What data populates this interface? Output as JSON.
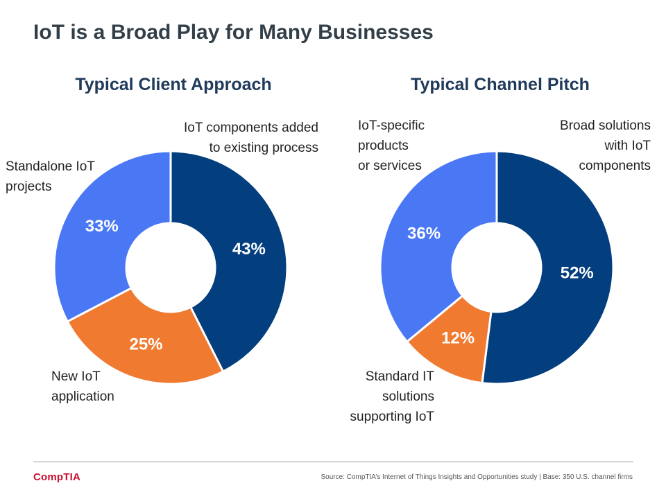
{
  "page": {
    "title": "IoT is a Broad Play for Many Businesses"
  },
  "colors": {
    "dark_blue": "#033e7e",
    "light_blue": "#4a78f5",
    "orange": "#ef7a30"
  },
  "chart_data": [
    {
      "type": "pie",
      "subtype": "donut",
      "title": "Typical Client Approach",
      "slices": [
        {
          "label": "IoT components added\nto existing process",
          "value": 43,
          "display": "43%",
          "color": "#033e7e"
        },
        {
          "label": "New IoT\napplication",
          "value": 25,
          "display": "25%",
          "color": "#ef7a30"
        },
        {
          "label": "Standalone IoT\nprojects",
          "value": 33,
          "display": "33%",
          "color": "#4a78f5"
        }
      ]
    },
    {
      "type": "pie",
      "subtype": "donut",
      "title": "Typical Channel Pitch",
      "slices": [
        {
          "label": "Broad solutions\nwith IoT\ncomponents",
          "value": 52,
          "display": "52%",
          "color": "#033e7e"
        },
        {
          "label": "Standard IT\nsolutions\nsupporting IoT",
          "value": 12,
          "display": "12%",
          "color": "#ef7a30"
        },
        {
          "label": "IoT-specific\nproducts\nor services",
          "value": 36,
          "display": "36%",
          "color": "#4a78f5"
        }
      ]
    }
  ],
  "footer": {
    "logo_text": "CompTIA",
    "source": "Source: CompTIA’s Internet of Things Insights and Opportunities study | Base: 350 U.S. channel firms"
  }
}
